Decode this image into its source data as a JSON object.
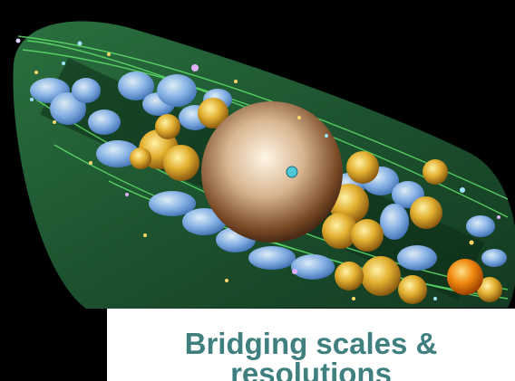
{
  "caption": {
    "text": "Bridging scales & resolutions",
    "color": "#3f7f7f"
  },
  "colors": {
    "background": "#000000",
    "cell_body": "#1f5a33",
    "membrane_line": "#5fe06a",
    "nucleoid": "#8fb9f0",
    "granule": "#e3b030",
    "central_sphere": "#d8b690"
  }
}
